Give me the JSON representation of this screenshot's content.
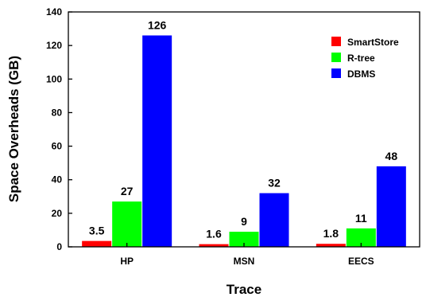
{
  "chart_data": {
    "type": "bar",
    "title": "",
    "xlabel": "Trace",
    "ylabel": "Space Overheads (GB)",
    "categories": [
      "HP",
      "MSN",
      "EECS"
    ],
    "series": [
      {
        "name": "SmartStore",
        "color": "#ff0000",
        "values": [
          3.5,
          1.6,
          1.8
        ],
        "labels": [
          "3.5",
          "1.6",
          "1.8"
        ]
      },
      {
        "name": "R-tree",
        "color": "#00ff00",
        "values": [
          27,
          9,
          11
        ],
        "labels": [
          "27",
          "9",
          "11"
        ]
      },
      {
        "name": "DBMS",
        "color": "#0000ff",
        "values": [
          126,
          32,
          48
        ],
        "labels": [
          "126",
          "32",
          "48"
        ]
      }
    ],
    "ylim": [
      0,
      140
    ],
    "yticks": [
      "0",
      "20",
      "40",
      "60",
      "80",
      "100",
      "120",
      "140"
    ],
    "grid": false,
    "legend": "top-right"
  }
}
